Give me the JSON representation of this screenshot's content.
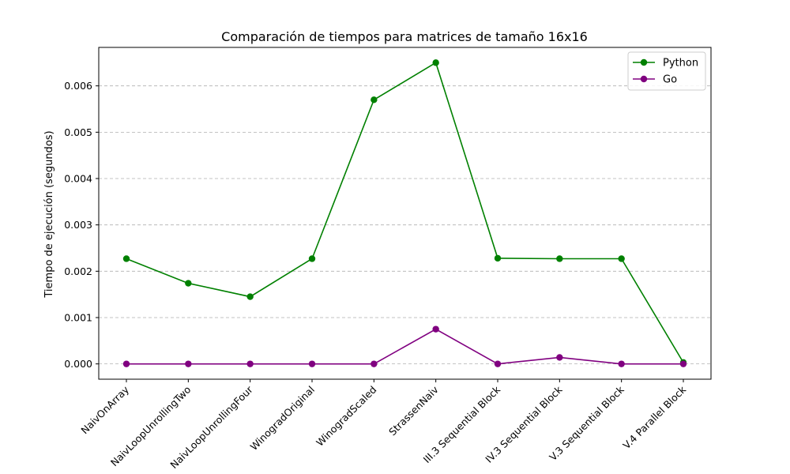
{
  "chart_data": {
    "type": "line",
    "title": "Comparación de tiempos para matrices de tamaño 16x16",
    "xlabel": "",
    "ylabel": "Tiempo de ejecución (segundos)",
    "categories": [
      "NaivOnArray",
      "NaivLoopUnrollingTwo",
      "NaivLoopUnrollingFour",
      "WinogradOriginal",
      "WinogradScaled",
      "StrassenNaiv",
      "III.3 Sequential Block",
      "IV.3 Sequential Block",
      "V.3 Sequential Block",
      "V.4 Parallel Block"
    ],
    "series": [
      {
        "name": "Python",
        "color": "#008000",
        "values": [
          0.00227,
          0.00174,
          0.00145,
          0.00227,
          0.0057,
          0.0065,
          0.00228,
          0.00227,
          0.00227,
          3e-05
        ]
      },
      {
        "name": "Go",
        "color": "#800080",
        "values": [
          0.0,
          0.0,
          0.0,
          0.0,
          0.0,
          0.00075,
          0.0,
          0.00014,
          0.0,
          0.0
        ]
      }
    ],
    "ylim": [
      -0.00033,
      0.00683
    ],
    "yticks": [
      "0.000",
      "0.001",
      "0.002",
      "0.003",
      "0.004",
      "0.005",
      "0.006"
    ],
    "ytick_values": [
      0.0,
      0.001,
      0.002,
      0.003,
      0.004,
      0.005,
      0.006
    ],
    "grid": "y-dashed",
    "legend_position": "top-right"
  }
}
